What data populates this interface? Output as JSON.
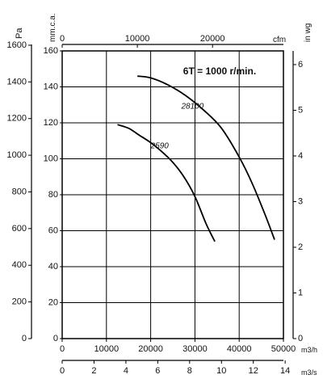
{
  "chart_data": {
    "type": "line",
    "title": "6T = 1000 r/min.",
    "x_axes": {
      "m3h": {
        "label": "m3/h",
        "range": [
          0,
          50000
        ],
        "ticks": [
          0,
          10000,
          20000,
          30000,
          40000,
          50000
        ]
      },
      "m3s": {
        "label": "m3/s",
        "range": [
          0,
          13.89
        ],
        "ticks": [
          0,
          2,
          4,
          6,
          8,
          10,
          12,
          14
        ]
      },
      "cfm": {
        "label": "cfm",
        "range": [
          0,
          29430
        ],
        "ticks": [
          0,
          10000,
          20000
        ]
      }
    },
    "y_axes": {
      "mmca": {
        "label": "mm.c.a.",
        "range": [
          0,
          160
        ],
        "ticks": [
          0,
          20,
          40,
          60,
          80,
          100,
          120,
          140,
          160
        ]
      },
      "pa": {
        "label": "Pa",
        "range": [
          0,
          1569
        ],
        "ticks": [
          0,
          200,
          400,
          600,
          800,
          1000,
          1200,
          1400,
          1600
        ]
      },
      "inwg": {
        "label": "in wg",
        "range": [
          0,
          6.3
        ],
        "ticks": [
          0,
          1,
          2,
          3,
          4,
          5,
          6
        ]
      }
    },
    "grid": true,
    "series": [
      {
        "name": "2590",
        "x_unit": "m3/h",
        "y_unit": "mm.c.a.",
        "x": [
          12500,
          15000,
          17500,
          20000,
          22500,
          25000,
          27500,
          30000,
          32500,
          34500
        ],
        "y": [
          119,
          117,
          113,
          109,
          104,
          98,
          90,
          79,
          64,
          54
        ]
      },
      {
        "name": "28100",
        "x_unit": "m3/h",
        "y_unit": "mm.c.a.",
        "x": [
          17000,
          20000,
          24000,
          28000,
          32000,
          36000,
          40000,
          43000,
          46000,
          48000
        ],
        "y": [
          146,
          145,
          141,
          135,
          127,
          117,
          101,
          86,
          68,
          55
        ]
      }
    ]
  }
}
